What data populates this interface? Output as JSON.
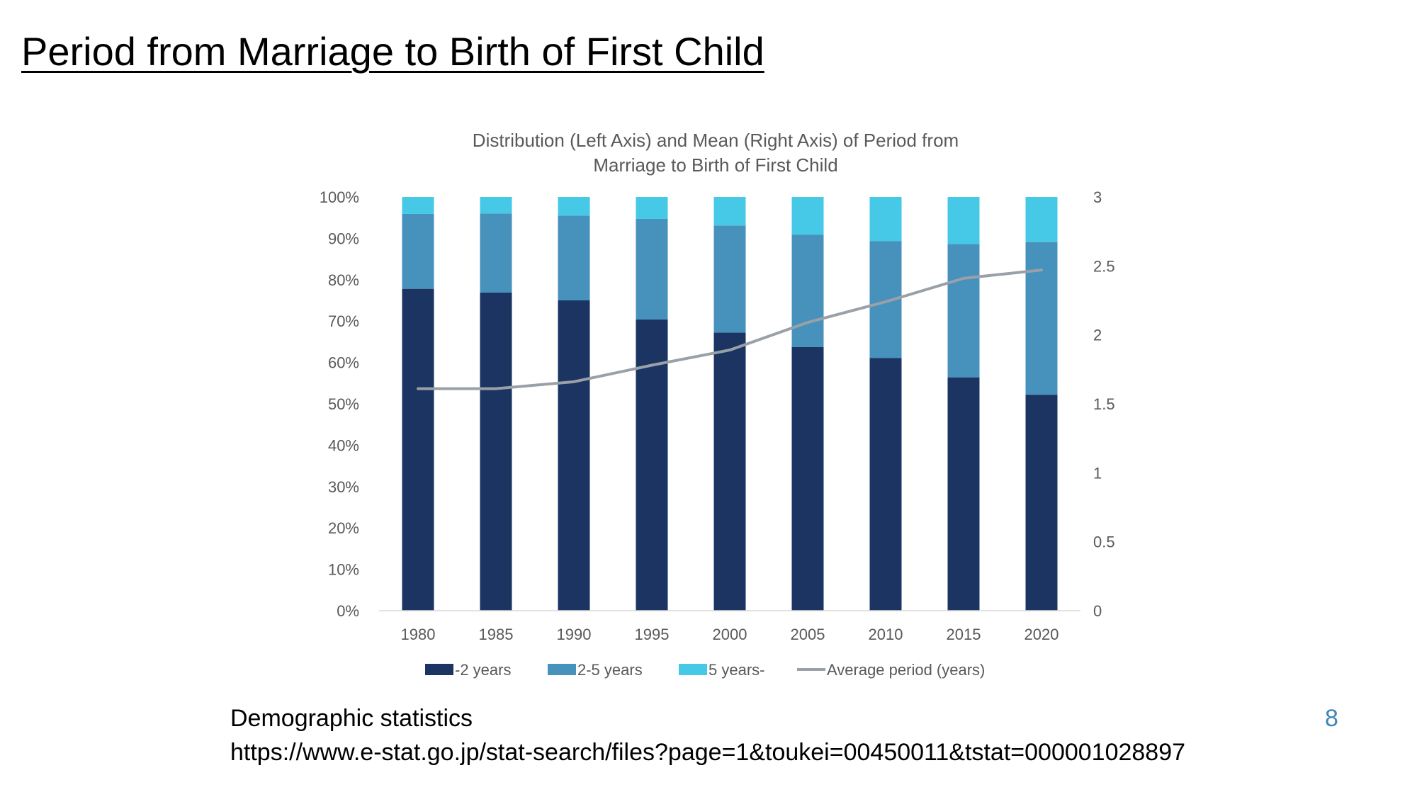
{
  "slide": {
    "title": "Period from Marriage to Birth of First Child",
    "source_name": "Demographic statistics",
    "source_url": "https://www.e-stat.go.jp/stat-search/files?page=1&toukei=00450011&tstat=000001028897",
    "page_number": "8"
  },
  "chart_data": {
    "type": "bar",
    "stacked": true,
    "title_lines": [
      "Distribution (Left Axis) and Mean (Right Axis) of Period from",
      "Marriage to Birth of First Child"
    ],
    "categories": [
      "1980",
      "1985",
      "1990",
      "1995",
      "2000",
      "2005",
      "2010",
      "2015",
      "2020"
    ],
    "y_left": {
      "range": [
        0,
        100
      ],
      "ticks": [
        0,
        10,
        20,
        30,
        40,
        50,
        60,
        70,
        80,
        90,
        100
      ],
      "tick_labels": [
        "0%",
        "10%",
        "20%",
        "30%",
        "40%",
        "50%",
        "60%",
        "70%",
        "80%",
        "90%",
        "100%"
      ]
    },
    "y_right": {
      "range": [
        0,
        3
      ],
      "ticks": [
        0,
        0.5,
        1,
        1.5,
        2,
        2.5,
        3
      ],
      "tick_labels": [
        "0",
        "0.5",
        "1",
        "1.5",
        "2",
        "2.5",
        "3"
      ]
    },
    "grid": false,
    "legend_position": "bottom",
    "series": [
      {
        "name": "-2 years",
        "type": "bar",
        "axis": "left",
        "color": "#1b3461",
        "values": [
          77.8,
          76.9,
          75.0,
          70.4,
          67.2,
          63.7,
          61.1,
          56.4,
          52.2
        ]
      },
      {
        "name": "2-5 years",
        "type": "bar",
        "axis": "left",
        "color": "#4791bd",
        "values": [
          18.1,
          19.1,
          20.5,
          24.3,
          25.9,
          27.2,
          28.2,
          32.2,
          36.9
        ]
      },
      {
        "name": "5 years-",
        "type": "bar",
        "axis": "left",
        "color": "#45c9e6",
        "values": [
          4.1,
          4.0,
          4.5,
          5.3,
          6.9,
          9.1,
          10.7,
          11.4,
          10.9
        ]
      },
      {
        "name": "Average period (years)",
        "type": "line",
        "axis": "right",
        "color": "#9aa0a8",
        "values": [
          1.61,
          1.61,
          1.66,
          1.78,
          1.89,
          2.09,
          2.24,
          2.41,
          2.47
        ]
      }
    ]
  }
}
